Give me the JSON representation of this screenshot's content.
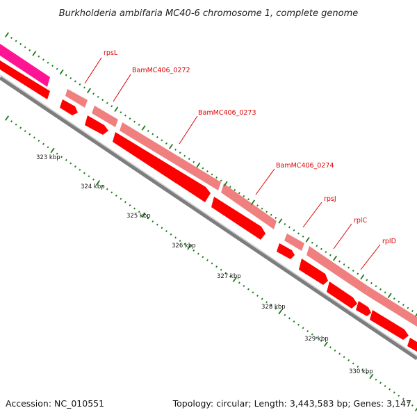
{
  "title": "Burkholderia ambifaria MC40-6 chromosome 1, complete genome",
  "footer": {
    "accession": "Accession: NC_010551",
    "summary": "Topology: circular; Length: 3,443,583 bp; Genes: 3,147"
  },
  "ticks": [
    "323 kbp",
    "324 kbp",
    "325 kbp",
    "326 kbp",
    "327 kbp",
    "328 kbp",
    "329 kbp",
    "330 kbp"
  ],
  "genes": [
    {
      "label": "rpsL"
    },
    {
      "label": "BamMC406_0272"
    },
    {
      "label": "BamMC406_0273"
    },
    {
      "label": "BamMC406_0274"
    },
    {
      "label": "rpsJ"
    },
    {
      "label": "rplC"
    },
    {
      "label": "rplD"
    }
  ],
  "colors": {
    "cds": "#ff0000",
    "gene": "#f08080",
    "other": "#ff1493",
    "backbone": "#808080",
    "tick": "#1a7a1a",
    "label": "#dd0000"
  }
}
